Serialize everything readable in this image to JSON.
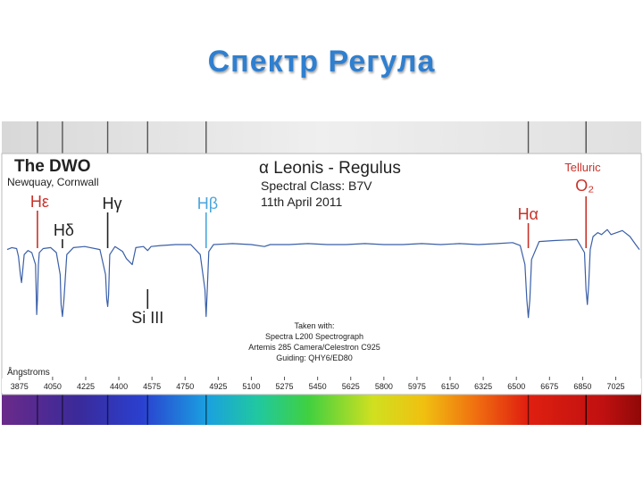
{
  "slide": {
    "title": "Спектр Регула"
  },
  "chart_data": {
    "type": "line",
    "observatory": "The DWO",
    "location": "Newquay, Cornwall",
    "star": "α Leonis - Regulus",
    "spectral_class": "Spectral Class: B7V",
    "date": "11th April 2011",
    "equipment": [
      "Taken with:",
      "Spectra L200 Spectrograph",
      "Artemis 285 Camera/Celestron C925",
      "Guiding: QHY6/ED80"
    ],
    "xlabel": "Ångstroms",
    "xlim": [
      3810,
      7150
    ],
    "ylim": [
      0.0,
      1.25
    ],
    "x_ticks": [
      3875,
      4050,
      4225,
      4400,
      4575,
      4750,
      4925,
      5100,
      5275,
      5450,
      5625,
      5800,
      5975,
      6150,
      6325,
      6500,
      6675,
      6850,
      7025
    ],
    "line_color": "#3a5fa8",
    "series": [
      {
        "x": [
          3810,
          3835,
          3860,
          3870,
          3880,
          3886,
          3890,
          3900,
          3920,
          3940,
          3960,
          3966,
          3970,
          3975,
          3980,
          4000,
          4040,
          4070,
          4090,
          4095,
          4102,
          4110,
          4125,
          4160,
          4220,
          4300,
          4330,
          4336,
          4341,
          4346,
          4352,
          4380,
          4420,
          4440,
          4471,
          4490,
          4530,
          4552,
          4570,
          4620,
          4700,
          4780,
          4830,
          4855,
          4861,
          4867,
          4875,
          4900,
          5000,
          5100,
          5169,
          5200,
          5300,
          5400,
          5500,
          5600,
          5700,
          5800,
          5900,
          6000,
          6100,
          6200,
          6300,
          6400,
          6480,
          6520,
          6545,
          6555,
          6563,
          6571,
          6580,
          6620,
          6700,
          6820,
          6860,
          6868,
          6875,
          6882,
          6890,
          6905,
          6930,
          6950,
          6980,
          7000,
          7030,
          7060,
          7100,
          7130,
          7150
        ],
        "y": [
          0.95,
          0.97,
          0.96,
          0.88,
          0.7,
          0.62,
          0.7,
          0.9,
          0.94,
          0.92,
          0.8,
          0.3,
          0.45,
          0.8,
          0.92,
          0.96,
          0.97,
          0.92,
          0.7,
          0.4,
          0.28,
          0.45,
          0.9,
          0.97,
          0.98,
          0.95,
          0.7,
          0.45,
          0.38,
          0.5,
          0.9,
          0.98,
          0.93,
          0.86,
          0.8,
          0.97,
          0.98,
          0.94,
          0.98,
          0.99,
          1.0,
          1.0,
          0.9,
          0.55,
          0.28,
          0.55,
          0.93,
          1.0,
          1.01,
          1.0,
          0.98,
          1.0,
          1.0,
          1.01,
          1.0,
          1.0,
          1.01,
          1.0,
          1.0,
          1.01,
          1.0,
          1.01,
          1.0,
          1.01,
          1.02,
          0.99,
          0.8,
          0.45,
          0.27,
          0.45,
          0.85,
          1.03,
          1.04,
          1.05,
          0.92,
          0.55,
          0.4,
          0.6,
          0.95,
          1.08,
          1.12,
          1.1,
          1.15,
          1.1,
          1.12,
          1.14,
          1.08,
          1.0,
          0.95
        ]
      }
    ],
    "annotations": [
      {
        "label": "Hε",
        "x": 3970,
        "color": "#c8322a"
      },
      {
        "label": "Hδ",
        "x": 4102,
        "color": "#222222"
      },
      {
        "label": "Hγ",
        "x": 4341,
        "color": "#222222"
      },
      {
        "label": "Si III",
        "x": 4552,
        "color": "#222222"
      },
      {
        "label": "Hβ",
        "x": 4861,
        "color": "#4aa6dc"
      },
      {
        "label": "Hα",
        "x": 6563,
        "color": "#c8322a"
      },
      {
        "label": "Telluric",
        "x": 6868,
        "color": "#c8322a"
      },
      {
        "label": "O₂",
        "x": 6868,
        "color": "#c8322a"
      }
    ]
  }
}
